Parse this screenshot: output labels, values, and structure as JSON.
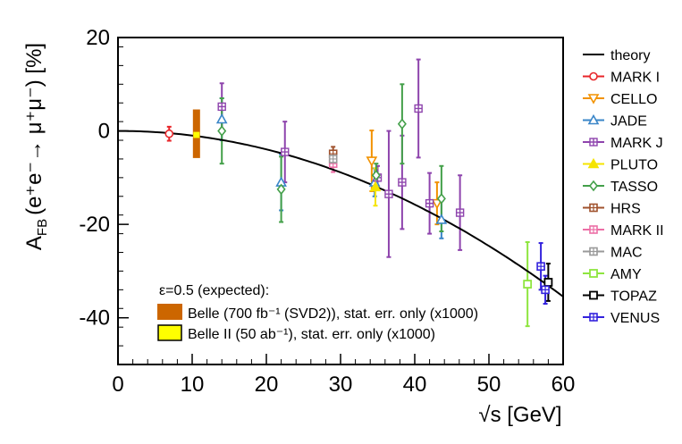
{
  "chart_data": {
    "type": "scatter",
    "title": "",
    "xlabel": "√s [GeV]",
    "ylabel_main": "A",
    "ylabel_sub": "FB",
    "ylabel_paren": "(e⁺e⁻→ μ⁺μ⁻) [%]",
    "xlim": [
      0,
      60
    ],
    "ylim": [
      -50,
      20
    ],
    "xticks": [
      0,
      10,
      20,
      30,
      40,
      50,
      60
    ],
    "yticks": [
      20,
      0,
      -20,
      -40
    ],
    "xtick_labels": [
      "0",
      "10",
      "20",
      "30",
      "40",
      "50",
      "60"
    ],
    "ytick_labels": [
      "20",
      "0",
      "-20",
      "-40"
    ],
    "grid": false,
    "legend_position": "right",
    "theory": {
      "name": "theory",
      "color": "#000000"
    },
    "series": [
      {
        "name": "MARK I",
        "color": "#e8262a",
        "marker": "circle",
        "points": [
          {
            "x": 6.9,
            "y": -0.6,
            "err": 1.5
          }
        ]
      },
      {
        "name": "CELLO",
        "color": "#f29200",
        "marker": "triangle-down",
        "points": [
          {
            "x": 34.2,
            "y": -6.4,
            "err": 6.5
          },
          {
            "x": 43.0,
            "y": -15.5,
            "err": 4.5
          }
        ]
      },
      {
        "name": "JADE",
        "color": "#3a86c8",
        "marker": "triangle-up",
        "points": [
          {
            "x": 14.0,
            "y": 2.5,
            "err": 4.5
          },
          {
            "x": 22.0,
            "y": -11.0,
            "err": 6.0
          },
          {
            "x": 34.6,
            "y": -11.0,
            "err": 3.0
          },
          {
            "x": 43.6,
            "y": -19.0,
            "err": 4.0
          }
        ]
      },
      {
        "name": "MARK J",
        "color": "#8e44ad",
        "marker": "cross",
        "points": [
          {
            "x": 14.0,
            "y": 5.2,
            "err": 5.0
          },
          {
            "x": 22.5,
            "y": -4.5,
            "err": 6.5
          },
          {
            "x": 35.0,
            "y": -10.0,
            "err": 2.5
          },
          {
            "x": 36.5,
            "y": -13.5,
            "err": 13.5
          },
          {
            "x": 38.3,
            "y": -11.0,
            "err": 10.0
          },
          {
            "x": 40.5,
            "y": 4.8,
            "err": 10.5
          },
          {
            "x": 42.0,
            "y": -15.5,
            "err": 6.5
          },
          {
            "x": 46.1,
            "y": -17.5,
            "err": 8.0
          }
        ]
      },
      {
        "name": "PLUTO",
        "color": "#f5e400",
        "marker": "triangle-up-filled",
        "points": [
          {
            "x": 34.7,
            "y": -12.0,
            "err": 4.0
          }
        ]
      },
      {
        "name": "TASSO",
        "color": "#44a04a",
        "marker": "diamond",
        "points": [
          {
            "x": 14.0,
            "y": 0.0,
            "err": 7.0
          },
          {
            "x": 22.0,
            "y": -12.5,
            "err": 7.0
          },
          {
            "x": 34.8,
            "y": -9.5,
            "err": 2.5
          },
          {
            "x": 38.3,
            "y": 1.5,
            "err": 8.5
          },
          {
            "x": 43.6,
            "y": -14.5,
            "err": 7.0
          }
        ]
      },
      {
        "name": "HRS",
        "color": "#a0522d",
        "marker": "square-cross",
        "points": [
          {
            "x": 29.0,
            "y": -4.9,
            "err": 1.5
          }
        ]
      },
      {
        "name": "MARK II",
        "color": "#ec6fa6",
        "marker": "square-cross",
        "points": [
          {
            "x": 29.0,
            "y": -7.0,
            "err": 1.8
          }
        ]
      },
      {
        "name": "MAC",
        "color": "#999999",
        "marker": "square-cross",
        "points": [
          {
            "x": 29.0,
            "y": -6.0,
            "err": 1.0
          }
        ]
      },
      {
        "name": "AMY",
        "color": "#8ee53f",
        "marker": "square",
        "points": [
          {
            "x": 55.2,
            "y": -32.8,
            "err": 9.0
          }
        ]
      },
      {
        "name": "TOPAZ",
        "color": "#000000",
        "marker": "square",
        "points": [
          {
            "x": 58.0,
            "y": -32.4,
            "err": 4.0
          }
        ]
      },
      {
        "name": "VENUS",
        "color": "#3322dd",
        "marker": "square-cross",
        "points": [
          {
            "x": 57.0,
            "y": -29.0,
            "err": 5.0
          },
          {
            "x": 57.6,
            "y": -34.0,
            "err": 3.0
          }
        ]
      }
    ],
    "belle_bars": [
      {
        "label": "Belle (700 fb⁻¹ (SVD2)), stat. err. only (x1000)",
        "color": "#cc6600",
        "x": 10.58,
        "y_low": -5.8,
        "y_high": 4.6
      },
      {
        "label": "Belle II (50 ab⁻¹), stat. err. only (x1000)",
        "color": "#ffff00",
        "x": 10.58,
        "y_low": -1.5,
        "y_high": -0.2
      }
    ],
    "annotation": "ε=0.5 (expected):"
  }
}
